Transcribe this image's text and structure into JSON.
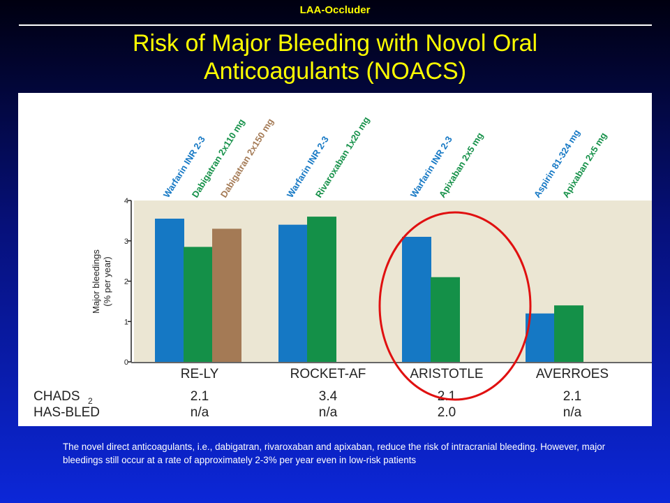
{
  "header": {
    "label": "LAA-Occluder"
  },
  "slide": {
    "title_line1": "Risk of Major Bleeding with Novol Oral",
    "title_line2": "Anticoagulants (NOACS)",
    "caption": "The novel direct anticoagulants, i.e., dabigatran, rivaroxaban and apixaban, reduce the risk of intracranial bleeding. However, major bleedings still occur at a rate of approximately 2-3% per year even in low-risk patients"
  },
  "colors": {
    "warfarin_aspirin": "#1578c4",
    "noac": "#149048",
    "dabigatran_150": "#a47a55",
    "plot_background": "#ebe6d3",
    "highlight_ellipse": "#e01010"
  },
  "chart_data": {
    "type": "bar",
    "ylabel": "Major bleedings",
    "ylabel_unit": "(% per year)",
    "ylim": [
      0,
      4
    ],
    "yticks": [
      "0",
      "1",
      "2",
      "3",
      "4"
    ],
    "grid": false,
    "highlighted_group": "ARISTOTLE",
    "groups": [
      {
        "trial": "RE-LY",
        "chads2": "2.1",
        "has_bled": "n/a",
        "bars": [
          {
            "label": "Warfarin INR 2-3",
            "value": 3.55,
            "color": "#1578c4"
          },
          {
            "label": "Dabigatran 2x110 mg",
            "value": 2.85,
            "color": "#149048"
          },
          {
            "label": "Dabigatran 2x150 mg",
            "value": 3.3,
            "color": "#a47a55"
          }
        ]
      },
      {
        "trial": "ROCKET-AF",
        "chads2": "3.4",
        "has_bled": "n/a",
        "bars": [
          {
            "label": "Warfarin INR 2-3",
            "value": 3.4,
            "color": "#1578c4"
          },
          {
            "label": "Rivaroxaban 1x20 mg",
            "value": 3.6,
            "color": "#149048"
          }
        ]
      },
      {
        "trial": "ARISTOTLE",
        "chads2": "2.1",
        "has_bled": "2.0",
        "bars": [
          {
            "label": "Warfarin INR 2-3",
            "value": 3.1,
            "color": "#1578c4"
          },
          {
            "label": "Apixaban 2x5 mg",
            "value": 2.1,
            "color": "#149048"
          }
        ]
      },
      {
        "trial": "AVERROES",
        "chads2": "2.1",
        "has_bled": "n/a",
        "bars": [
          {
            "label": "Aspirin 81-324 mg",
            "value": 1.2,
            "color": "#1578c4"
          },
          {
            "label": "Apixaban 2x5 mg",
            "value": 1.4,
            "color": "#149048"
          }
        ]
      }
    ],
    "row_labels": {
      "chads2_main": "CHADS",
      "chads2_sub": "2",
      "has_bled": "HAS-BLED"
    }
  }
}
